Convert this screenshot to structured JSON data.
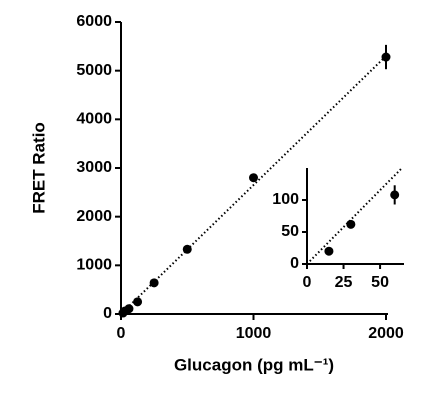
{
  "chart_data": [
    {
      "type": "scatter",
      "x_label": "Glucagon (pg mL⁻¹)",
      "y_label": "FRET Ratio",
      "x": [
        15,
        30,
        60,
        125,
        250,
        500,
        1000,
        2000
      ],
      "values": [
        20,
        62,
        108,
        250,
        640,
        1330,
        2800,
        5280
      ],
      "errors": [
        0,
        0,
        15,
        0,
        0,
        0,
        0,
        250
      ],
      "fit": {
        "x": [
          0,
          2000
        ],
        "y": [
          0,
          5300
        ]
      },
      "color": "#000000",
      "xlim": [
        0,
        2000
      ],
      "xticks": [
        0,
        1000,
        2000
      ],
      "ylim": [
        0,
        6000
      ],
      "yticks": [
        0,
        1000,
        2000,
        3000,
        4000,
        5000,
        6000
      ]
    },
    {
      "type": "scatter",
      "x": [
        15,
        30,
        60
      ],
      "values": [
        20,
        62,
        108
      ],
      "errors": [
        0,
        0,
        15
      ],
      "fit": {
        "x": [
          0,
          65
        ],
        "y": [
          0,
          150
        ]
      },
      "color": "#000000",
      "xlim": [
        0,
        65
      ],
      "xticks": [
        0,
        25,
        50
      ],
      "ylim": [
        0,
        150
      ],
      "yticks": [
        0,
        50,
        100
      ]
    }
  ]
}
